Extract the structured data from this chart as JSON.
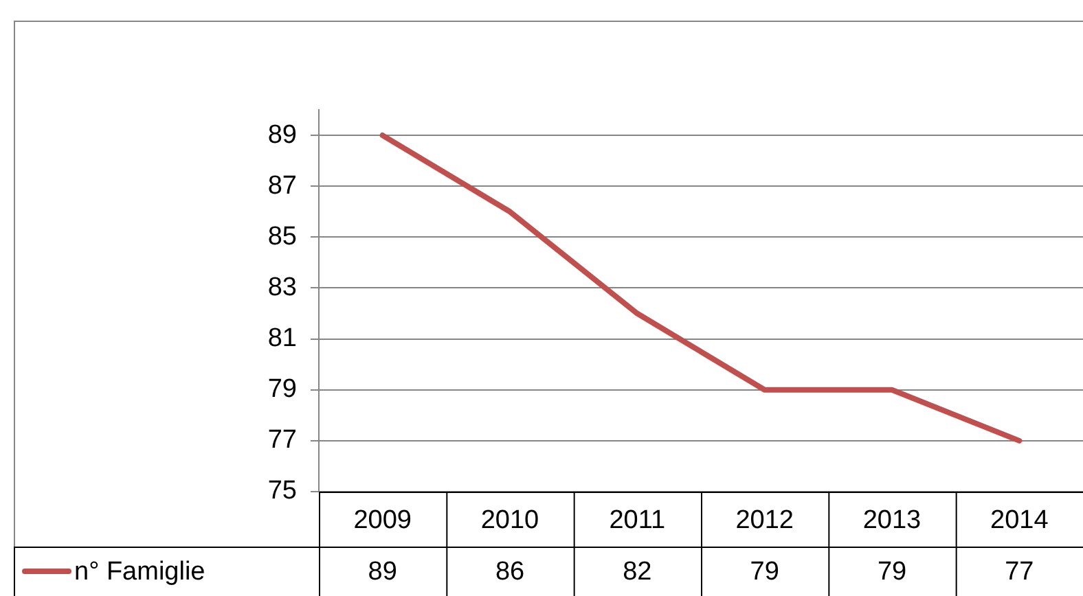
{
  "chart_data": {
    "type": "line",
    "categories": [
      "2009",
      "2010",
      "2011",
      "2012",
      "2013",
      "2014"
    ],
    "series": [
      {
        "name": "n° Famiglie",
        "color": "#c0504d",
        "values": [
          89,
          86,
          82,
          79,
          79,
          77
        ]
      }
    ],
    "ylim": [
      75,
      90
    ],
    "yticks": [
      75,
      77,
      79,
      81,
      83,
      85,
      87,
      89
    ],
    "grid": "y",
    "legend": "bottom left",
    "data_labels": true,
    "marker": "none",
    "line_style": "solid"
  }
}
